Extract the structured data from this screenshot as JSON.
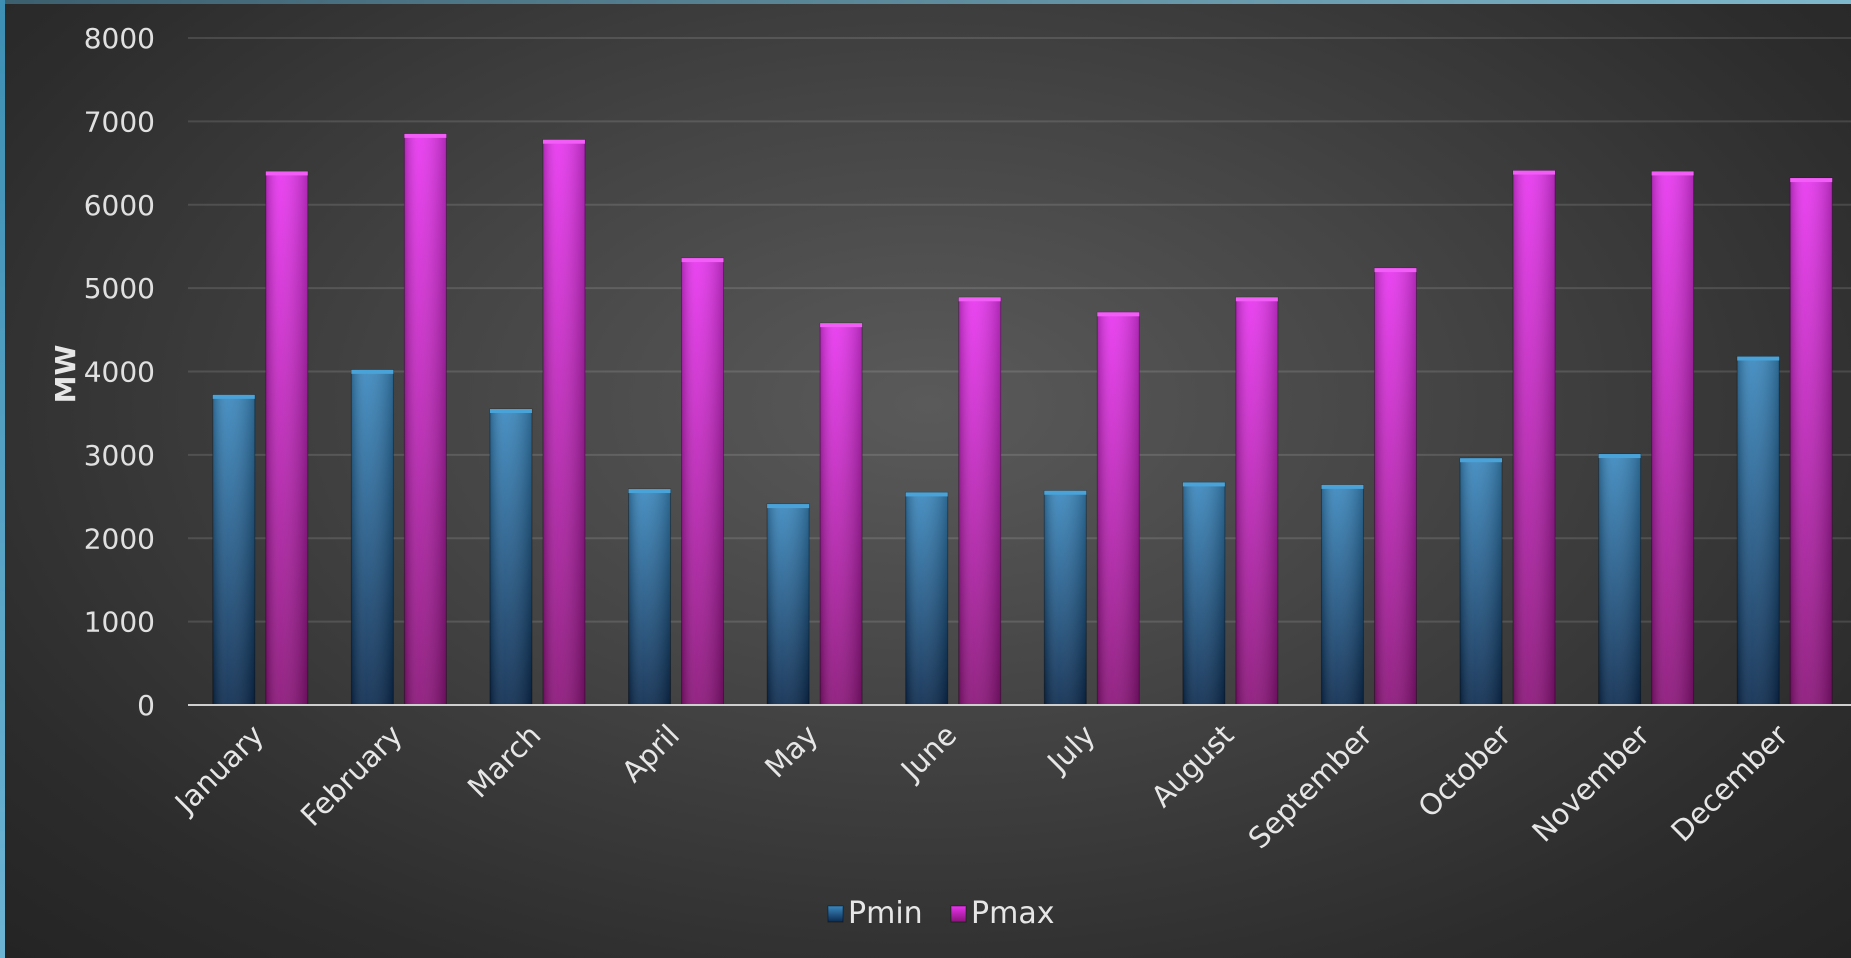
{
  "chart_data": {
    "type": "bar",
    "title": "",
    "xlabel": "",
    "ylabel": "MW",
    "ylim": [
      0,
      8000
    ],
    "yticks": [
      "0",
      "1000",
      "2000",
      "3000",
      "4000",
      "5000",
      "6000",
      "7000",
      "8000"
    ],
    "grid": true,
    "legend_position": "bottom",
    "categories": [
      "January",
      "February",
      "March",
      "April",
      "May",
      "June",
      "July",
      "August",
      "September",
      "October",
      "November",
      "December"
    ],
    "series": [
      {
        "name": "Pmin",
        "color": "#2c6e9e",
        "values": [
          3720,
          4020,
          3550,
          2590,
          2410,
          2550,
          2570,
          2670,
          2640,
          2960,
          3010,
          4180
        ]
      },
      {
        "name": "Pmax",
        "color": "#e22ee8",
        "values": [
          6400,
          6850,
          6780,
          5360,
          4580,
          4890,
          4710,
          4890,
          5240,
          6410,
          6400,
          6320
        ]
      }
    ]
  }
}
